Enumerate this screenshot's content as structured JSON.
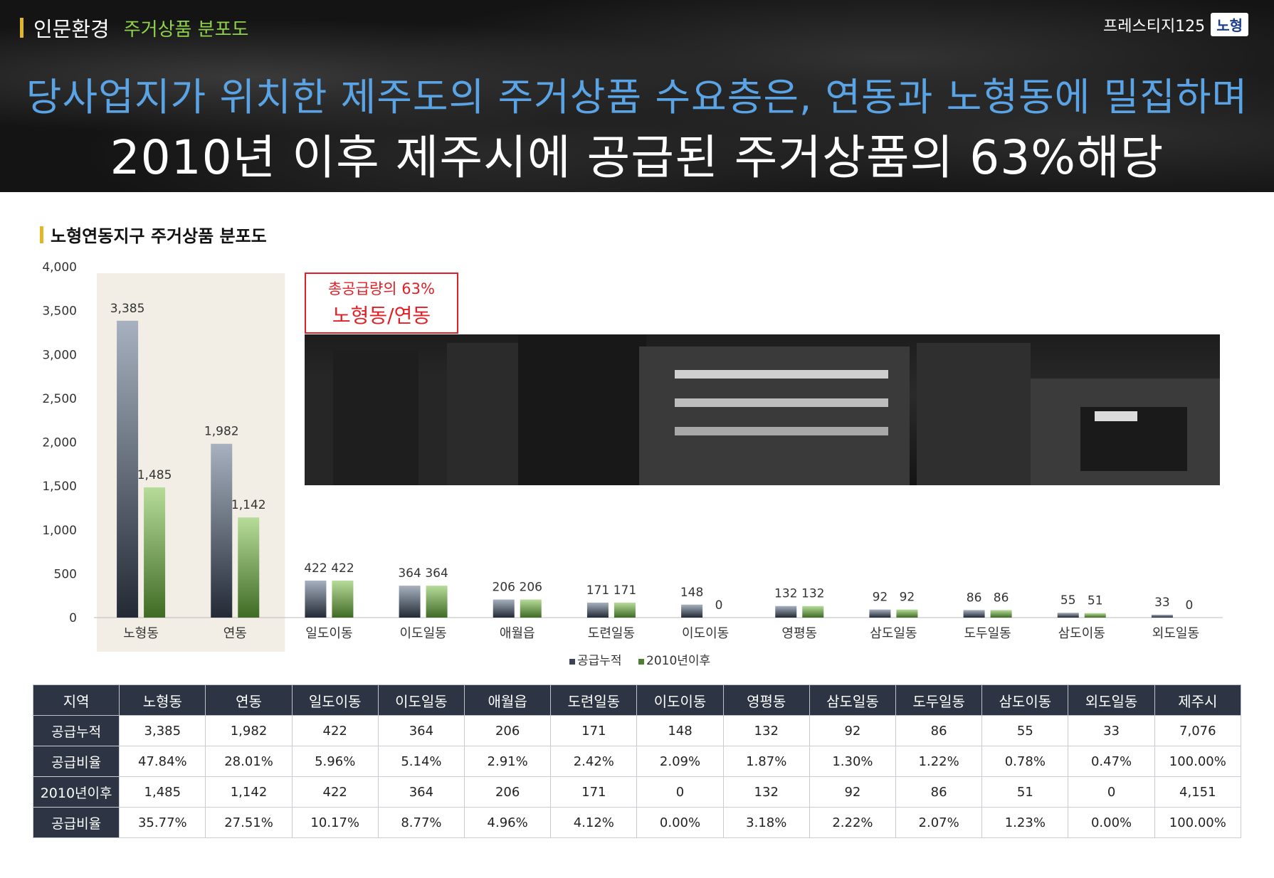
{
  "header": {
    "section": "인문환경",
    "subsection": "주거상품 분포도",
    "brand": "프레스티지125",
    "badge": "노형",
    "headline1": "당사업지가 위치한 제주도의 주거상품 수요층은, 연동과 노형동에 밀집하며",
    "headline2": "2010년 이후 제주시에 공급된 주거상품의 63%해당"
  },
  "section_title": "노형연동지구 주거상품 분포도",
  "callout": {
    "line1": "총공급량의 63%",
    "line2": "노형동/연동"
  },
  "colors": {
    "series1": "#3a4456",
    "series2": "#4f7f33",
    "highlight_bg": "#f2eee6",
    "callout": "#e11f26",
    "table_header": "#2d3444"
  },
  "chart_data": {
    "type": "bar",
    "categories": [
      "노형동",
      "연동",
      "일도이동",
      "이도일동",
      "애월읍",
      "도련일동",
      "이도이동",
      "영평동",
      "삼도일동",
      "도두일동",
      "삼도이동",
      "외도일동"
    ],
    "series": [
      {
        "name": "공급누적",
        "values": [
          3385,
          1982,
          422,
          364,
          206,
          171,
          148,
          132,
          92,
          86,
          55,
          33
        ]
      },
      {
        "name": "2010년이후",
        "values": [
          1485,
          1142,
          422,
          364,
          206,
          171,
          0,
          132,
          92,
          86,
          51,
          0
        ]
      }
    ],
    "ylim": [
      0,
      4000
    ],
    "yticks": [
      0,
      500,
      1000,
      1500,
      2000,
      2500,
      3000,
      3500,
      4000
    ],
    "ytick_labels": [
      "0",
      "500",
      "1,000",
      "1,500",
      "2,000",
      "2,500",
      "3,000",
      "3,500",
      "4,000"
    ],
    "value_labels": [
      [
        "3,385",
        "1,982",
        "422",
        "364",
        "206",
        "171",
        "148",
        "132",
        "92",
        "86",
        "55",
        "33"
      ],
      [
        "1,485",
        "1,142",
        "422",
        "364",
        "206",
        "171",
        "0",
        "132",
        "92",
        "86",
        "51",
        "0"
      ]
    ],
    "legend": [
      "공급누적",
      "2010년이후"
    ],
    "highlighted_categories": [
      "노형동",
      "연동"
    ]
  },
  "table": {
    "headers": [
      "지역",
      "노형동",
      "연동",
      "일도이동",
      "이도일동",
      "애월읍",
      "도련일동",
      "이도이동",
      "영평동",
      "삼도일동",
      "도두일동",
      "삼도이동",
      "외도일동",
      "제주시"
    ],
    "rows": [
      [
        "공급누적",
        "3,385",
        "1,982",
        "422",
        "364",
        "206",
        "171",
        "148",
        "132",
        "92",
        "86",
        "55",
        "33",
        "7,076"
      ],
      [
        "공급비율",
        "47.84%",
        "28.01%",
        "5.96%",
        "5.14%",
        "2.91%",
        "2.42%",
        "2.09%",
        "1.87%",
        "1.30%",
        "1.22%",
        "0.78%",
        "0.47%",
        "100.00%"
      ],
      [
        "2010년이후",
        "1,485",
        "1,142",
        "422",
        "364",
        "206",
        "171",
        "0",
        "132",
        "92",
        "86",
        "51",
        "0",
        "4,151"
      ],
      [
        "공급비율",
        "35.77%",
        "27.51%",
        "10.17%",
        "8.77%",
        "4.96%",
        "4.12%",
        "0.00%",
        "3.18%",
        "2.22%",
        "2.07%",
        "1.23%",
        "0.00%",
        "100.00%"
      ]
    ]
  }
}
